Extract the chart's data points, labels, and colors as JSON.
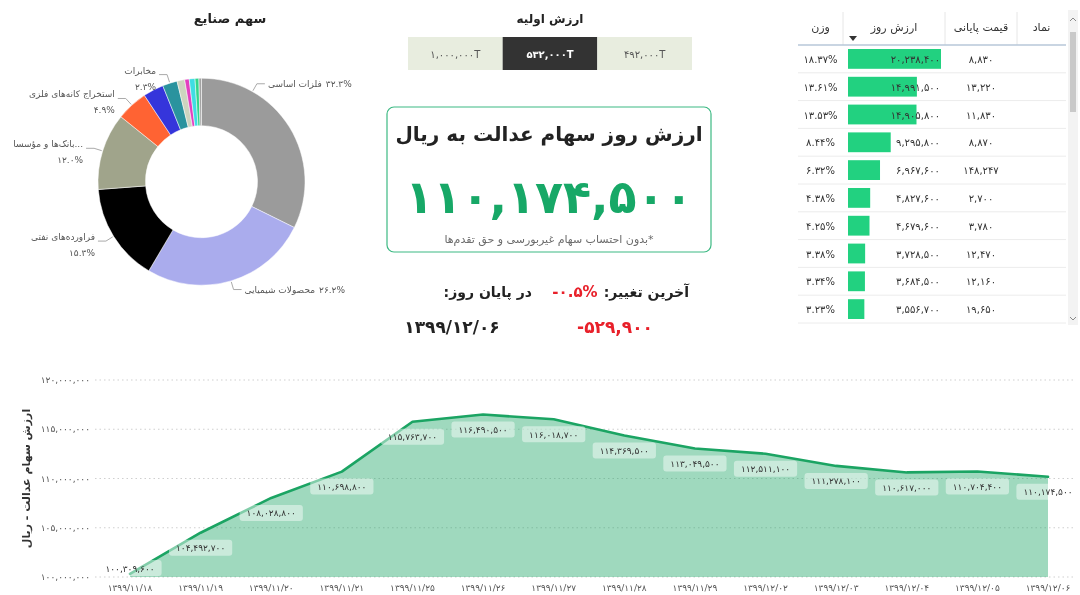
{
  "chart_data": [
    {
      "type": "donut",
      "title": "سهم صنایع",
      "categories": [
        "فلزات اساسی",
        "محصولات شیمیایی",
        "فراورده‌های نفتی",
        "بانک‌ها و مؤسسا...",
        "استخراج کانه‌های فلزی",
        null,
        "مخابرات",
        null,
        null,
        null,
        null,
        null
      ],
      "values": [
        32.3,
        26.2,
        15.3,
        12.0,
        4.9,
        3.2,
        2.3,
        1.2,
        0.7,
        0.9,
        0.6,
        0.4
      ],
      "value_labels": [
        "۳۲.۳%",
        "۲۶.۲%",
        "۱۵.۳%",
        "۱۲.۰%",
        "۴.۹%",
        null,
        "۲.۳%",
        null,
        null,
        null,
        null,
        null
      ],
      "colors": [
        "#9b9b9b",
        "#aaaced",
        "#000000",
        "#a0a48b",
        "#ff6333",
        "#3535db",
        "#2a939e",
        "#cdd4bf",
        "#e33fbf",
        "#40dde3",
        "#33d68a",
        "#a3a3a3"
      ]
    },
    {
      "type": "other",
      "title": "ارزش اولیه",
      "categories": [
        "۱,۰۰۰,۰۰۰T",
        "۵۳۲,۰۰۰T",
        "۴۹۲,۰۰۰T"
      ],
      "colors": [
        "#e8eddf",
        "#333333",
        "#e8eddf"
      ]
    },
    {
      "type": "other",
      "title": "ارزش روز سهام عدالت به ریال",
      "annotations": [
        "۱۱۰,۱۷۴,۵۰۰",
        "*بدون احتساب سهام غیربورسی و حق تقدم‌ها"
      ]
    },
    {
      "type": "other",
      "annotations": [
        "آخرین تغییر:",
        "-۰.۵%",
        "در پایان روز:",
        "-۵۲۹,۹۰۰",
        "۱۳۹۹/۱۲/۰۶"
      ]
    },
    {
      "type": "bar",
      "orientation": "horizontal",
      "ylabel": "نماد",
      "xlabel": "ارزش روز",
      "color": "#22d180",
      "categories": [
        null,
        null,
        null,
        null,
        null,
        null,
        null,
        null,
        null,
        null
      ],
      "values": [
        20238400,
        14991500,
        14905800,
        9295800,
        6967600,
        4827600,
        4679600,
        3728500,
        3684500,
        3556700
      ],
      "value_labels": [
        "۲۰,۲۳۸,۴۰۰",
        "۱۴,۹۹۱,۵۰۰",
        "۱۴,۹۰۵,۸۰۰",
        "۹,۲۹۵,۸۰۰",
        "۶,۹۶۷,۶۰۰",
        "۴,۸۲۷,۶۰۰",
        "۴,۶۷۹,۶۰۰",
        "۳,۷۲۸,۵۰۰",
        "۳,۶۸۴,۵۰۰",
        "۳,۵۵۶,۷۰۰"
      ]
    },
    {
      "type": "other",
      "title": "قیمت پایانی",
      "values": [
        8830,
        13220,
        11830,
        8870,
        148247,
        2700,
        3780,
        12470,
        12160,
        19650
      ],
      "value_labels": [
        "۸,۸۳۰",
        "۱۳,۲۲۰",
        "۱۱,۸۳۰",
        "۸,۸۷۰",
        "۱۴۸,۲۴۷",
        "۲,۷۰۰",
        "۳,۷۸۰",
        "۱۲,۴۷۰",
        "۱۲,۱۶۰",
        "۱۹,۶۵۰"
      ]
    },
    {
      "type": "other",
      "title": "وزن",
      "values": [
        18.37,
        13.61,
        13.53,
        8.44,
        6.32,
        4.38,
        4.25,
        3.38,
        3.34,
        3.23
      ],
      "value_labels": [
        "۱۸.۳۷%",
        "۱۳.۶۱%",
        "۱۳.۵۳%",
        "۸.۴۴%",
        "۶.۳۲%",
        "۴.۳۸%",
        "۴.۲۵%",
        "۳.۳۸%",
        "۳.۳۴%",
        "۳.۲۳%"
      ]
    },
    {
      "type": "area",
      "ylabel": "ارزش سهام عدالت - ریال",
      "color": "#1ba463",
      "grid": "y",
      "categories": [
        "۱۳۹۹/۱۱/۱۸",
        "۱۳۹۹/۱۱/۱۹",
        "۱۳۹۹/۱۱/۲۰",
        "۱۳۹۹/۱۱/۲۱",
        "۱۳۹۹/۱۱/۲۵",
        "۱۳۹۹/۱۱/۲۶",
        "۱۳۹۹/۱۱/۲۷",
        "۱۳۹۹/۱۱/۲۸",
        "۱۳۹۹/۱۱/۲۹",
        "۱۳۹۹/۱۲/۰۲",
        "۱۳۹۹/۱۲/۰۳",
        "۱۳۹۹/۱۲/۰۴",
        "۱۳۹۹/۱۲/۰۵",
        "۱۳۹۹/۱۲/۰۶"
      ],
      "values": [
        100309600,
        104492700,
        108028800,
        110698800,
        115763700,
        116490500,
        116018700,
        114369500,
        113049500,
        112511100,
        111278100,
        110617000,
        110704400,
        110174500
      ],
      "value_labels": [
        "۱۰۰,۳۰۹,۶۰۰",
        "۱۰۴,۴۹۲,۷۰۰",
        "۱۰۸,۰۲۸,۸۰۰",
        "۱۱۰,۶۹۸,۸۰۰",
        "۱۱۵,۷۶۳,۷۰۰",
        "۱۱۶,۴۹۰,۵۰۰",
        "۱۱۶,۰۱۸,۷۰۰",
        "۱۱۴,۳۶۹,۵۰۰",
        "۱۱۳,۰۴۹,۵۰۰",
        "۱۱۲,۵۱۱,۱۰۰",
        "۱۱۱,۲۷۸,۱۰۰",
        "۱۱۰,۶۱۷,۰۰۰",
        "۱۱۰,۷۰۴,۴۰۰",
        "۱۱۰,۱۷۴,۵۰۰"
      ],
      "ylim": [
        100000000,
        120000000
      ],
      "yticks": [
        {
          "value": 100000000,
          "label": "۱۰۰,۰۰۰,۰۰۰"
        },
        {
          "value": 105000000,
          "label": "۱۰۵,۰۰۰,۰۰۰"
        },
        {
          "value": 110000000,
          "label": "۱۱۰,۰۰۰,۰۰۰"
        },
        {
          "value": 115000000,
          "label": "۱۱۵,۰۰۰,۰۰۰"
        },
        {
          "value": 120000000,
          "label": "۱۲۰,۰۰۰,۰۰۰"
        }
      ]
    }
  ]
}
